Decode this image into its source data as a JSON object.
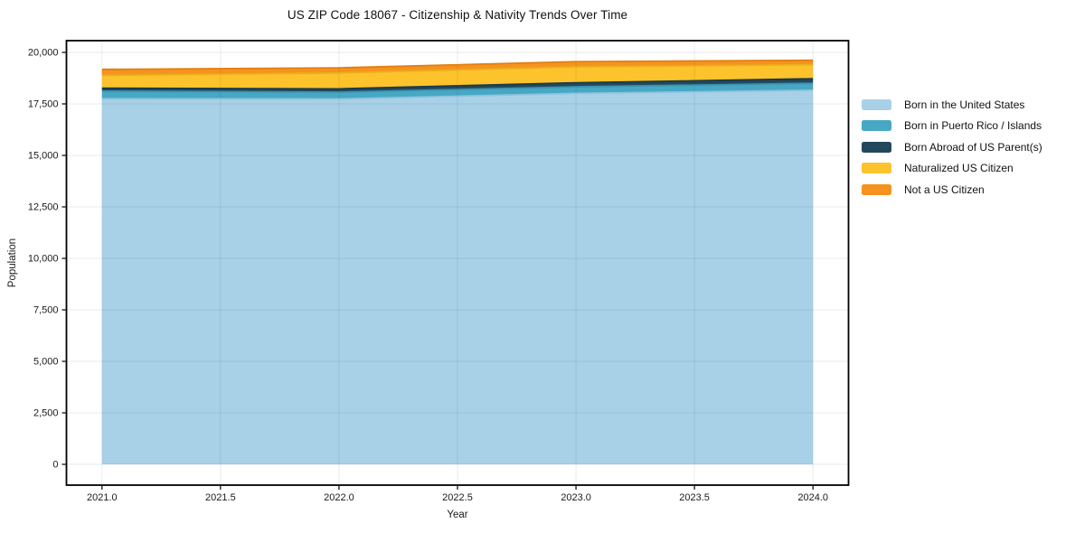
{
  "figure": {
    "title": "US ZIP Code 18067 - Citizenship & Nativity Trends Over Time"
  },
  "chart_data": {
    "type": "area",
    "stacked": true,
    "title": "US ZIP Code 18067 - Citizenship & Nativity Trends Over Time",
    "xlabel": "Year",
    "ylabel": "Population",
    "x": [
      2021,
      2022,
      2023,
      2024
    ],
    "series": [
      {
        "name": "Born in the United States",
        "color": "#a8d1e7",
        "edge_color": "#8fc2dd",
        "values": [
          17750,
          17740,
          18010,
          18160
        ]
      },
      {
        "name": "Born in Puerto Rico / Islands",
        "color": "#46a8c4",
        "edge_color": "#3b93ad",
        "values": [
          370,
          330,
          320,
          340
        ]
      },
      {
        "name": "Born Abroad of US Parent(s)",
        "color": "#23485c",
        "edge_color": "#1b3a4b",
        "values": [
          140,
          160,
          195,
          220
        ]
      },
      {
        "name": "Naturalized US Citizen",
        "color": "#fcc32d",
        "edge_color": "#eab01b",
        "values": [
          625,
          770,
          775,
          680
        ]
      },
      {
        "name": "Not a US Citizen",
        "color": "#f6921e",
        "edge_color": "#e27f0e",
        "values": [
          290,
          250,
          250,
          220
        ]
      }
    ],
    "stack_totals": [
      19175,
      19250,
      19550,
      19620
    ],
    "xlim": [
      2020.85,
      2024.15
    ],
    "ylim": [
      -1009,
      20570
    ],
    "x_ticks": [
      2021.0,
      2021.5,
      2022.0,
      2022.5,
      2023.0,
      2023.5,
      2024.0
    ],
    "x_tick_labels": [
      "2021.0",
      "2021.5",
      "2022.0",
      "2022.5",
      "2023.0",
      "2023.5",
      "2024.0"
    ],
    "y_ticks": [
      0,
      2500,
      5000,
      7500,
      10000,
      12500,
      15000,
      17500,
      20000
    ],
    "y_tick_labels": [
      "0",
      "2,500",
      "5,000",
      "7,500",
      "10,000",
      "12,500",
      "15,000",
      "17,500",
      "20,000"
    ],
    "grid": true,
    "legend_position": "right",
    "axis_color": "#000000",
    "tick_label_color": "#1a1a1a",
    "grid_color": "rgba(0,0,0,0.08)"
  }
}
